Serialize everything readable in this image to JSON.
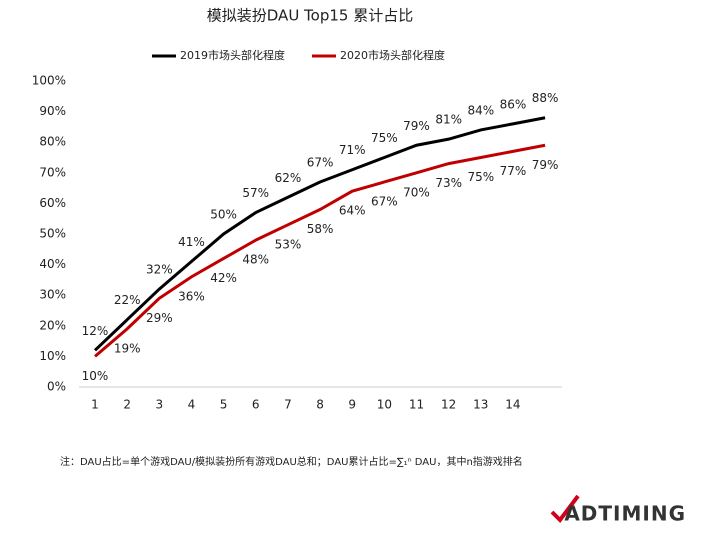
{
  "chart_data": {
    "type": "line",
    "title": "模拟装扮DAU Top15 累计占比",
    "categories": [
      "1",
      "2",
      "3",
      "4",
      "5",
      "6",
      "7",
      "8",
      "9",
      "10",
      "11",
      "12",
      "13",
      "14",
      null
    ],
    "series": [
      {
        "name": "2019市场头部化程度",
        "color": "#000000",
        "values": [
          12,
          22,
          32,
          41,
          50,
          57,
          62,
          67,
          71,
          75,
          79,
          81,
          84,
          86,
          88
        ],
        "value_labels": [
          "12%",
          "22%",
          "32%",
          "41%",
          "50%",
          "57%",
          "62%",
          "67%",
          "71%",
          "75%",
          "79%",
          "81%",
          "84%",
          "86%",
          "88%"
        ]
      },
      {
        "name": "2020市场头部化程度",
        "color": "#c00000",
        "values": [
          10,
          19,
          29,
          36,
          42,
          48,
          53,
          58,
          64,
          67,
          70,
          73,
          75,
          77,
          79
        ],
        "value_labels": [
          "10%",
          "19%",
          "29%",
          "36%",
          "42%",
          "48%",
          "53%",
          "58%",
          "64%",
          "67%",
          "70%",
          "73%",
          "75%",
          "77%",
          "79%"
        ]
      }
    ],
    "ylim": [
      0,
      100
    ],
    "yticks": [
      {
        "value": 0,
        "label": "0%"
      },
      {
        "value": 10,
        "label": "10%"
      },
      {
        "value": 20,
        "label": "20%"
      },
      {
        "value": 30,
        "label": "30%"
      },
      {
        "value": 40,
        "label": "40%"
      },
      {
        "value": 50,
        "label": "50%"
      },
      {
        "value": 60,
        "label": "60%"
      },
      {
        "value": 70,
        "label": "70%"
      },
      {
        "value": 80,
        "label": "80%"
      },
      {
        "value": 90,
        "label": "90%"
      },
      {
        "value": 100,
        "label": "100%"
      }
    ],
    "grid": false,
    "legend": "top",
    "footnote": "注：DAU占比=单个游戏DAU/模拟装扮所有游戏DAU总和；DAU累计占比=∑₁ⁿ DAU，其中n指游戏排名",
    "logo": "ADTIMING"
  }
}
